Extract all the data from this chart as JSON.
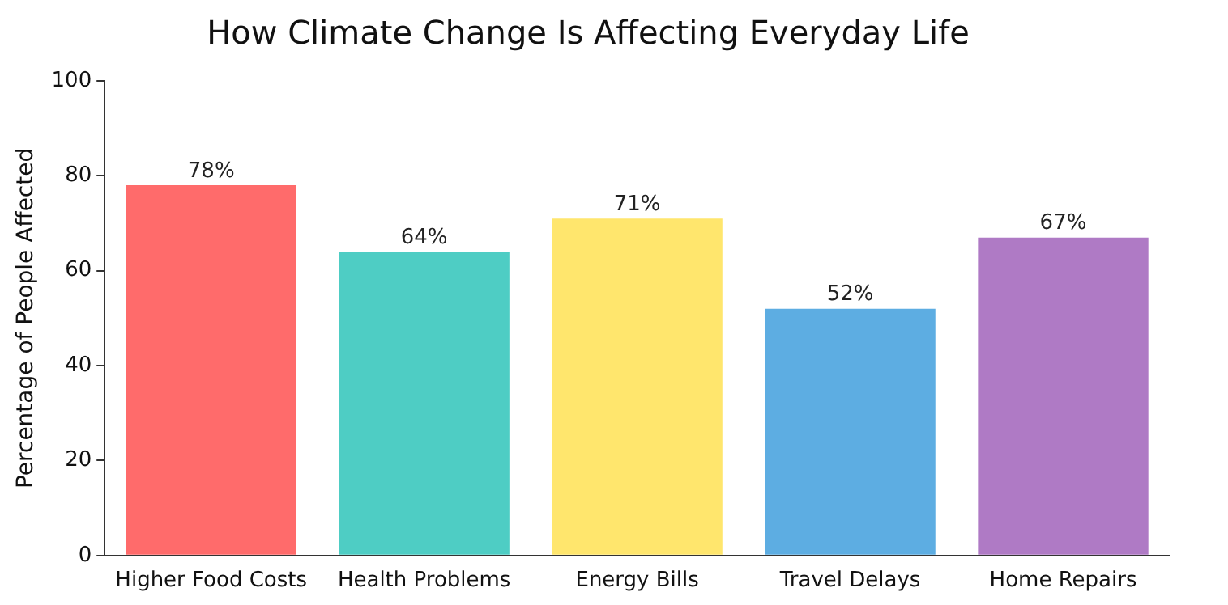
{
  "chart_data": {
    "type": "bar",
    "title": "How Climate Change Is Affecting Everyday Life",
    "ylabel": "Percentage of People Affected",
    "categories": [
      "Higher Food Costs",
      "Health Problems",
      "Energy Bills",
      "Travel Delays",
      "Home Repairs"
    ],
    "values": [
      78,
      64,
      71,
      52,
      67
    ],
    "colors": [
      "#ff6b6b",
      "#4ecdc4",
      "#ffe66d",
      "#5dade2",
      "#af7ac5"
    ],
    "value_labels": [
      "78%",
      "64%",
      "71%",
      "52%",
      "67%"
    ],
    "ylim": [
      0,
      100
    ],
    "yticks": [
      0,
      20,
      40,
      60,
      80,
      100
    ],
    "grid": false,
    "legend": false
  }
}
